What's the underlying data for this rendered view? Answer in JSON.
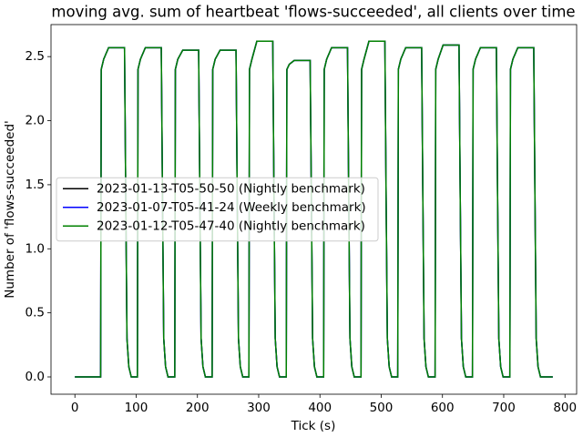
{
  "chart_data": {
    "type": "line",
    "title": "moving avg. sum of heartbeat 'flows-succeeded', all clients over time",
    "x_label": "Tick (s)",
    "y_label": "Number of 'flows-succeeded'",
    "xlim": [
      -39,
      819
    ],
    "ylim": [
      -0.135,
      2.75
    ],
    "xticks": [
      0,
      100,
      200,
      300,
      400,
      500,
      600,
      700,
      800
    ],
    "yticks": [
      {
        "value": 0,
        "label": "0.0"
      },
      0.5,
      {
        "value": 1,
        "label": "1.0"
      },
      1.5,
      {
        "value": 2,
        "label": "2.0"
      },
      2.5
    ],
    "legend": "center left",
    "grid": false,
    "x": [
      0,
      42,
      43,
      47,
      55,
      81,
      83,
      85,
      88,
      92,
      102,
      103,
      107,
      115,
      141,
      143,
      145,
      148,
      152,
      163,
      164,
      168,
      176,
      202,
      204,
      206,
      209,
      213,
      224,
      225,
      229,
      237,
      263,
      265,
      267,
      270,
      274,
      284,
      285,
      289,
      297,
      323,
      325,
      327,
      330,
      334,
      345,
      346,
      350,
      358,
      384,
      386,
      388,
      391,
      395,
      406,
      407,
      411,
      419,
      445,
      447,
      449,
      452,
      456,
      467,
      468,
      472,
      480,
      506,
      508,
      510,
      513,
      517,
      527,
      528,
      532,
      540,
      566,
      568,
      570,
      573,
      577,
      588,
      589,
      593,
      601,
      627,
      629,
      631,
      634,
      638,
      649,
      650,
      654,
      662,
      688,
      690,
      692,
      695,
      699,
      710,
      711,
      715,
      723,
      749,
      751,
      753,
      756,
      760,
      780
    ],
    "series": [
      {
        "name": "2023-01-13-T05-50-50 (Nightly benchmark)",
        "color": "#000000",
        "values": [
          0,
          0,
          2.4,
          2.48,
          2.57,
          2.57,
          1.4,
          0.3,
          0.08,
          0,
          0,
          2.4,
          2.48,
          2.57,
          2.57,
          1.4,
          0.3,
          0.08,
          0,
          0,
          2.4,
          2.48,
          2.55,
          2.55,
          1.4,
          0.3,
          0.08,
          0,
          0,
          2.4,
          2.48,
          2.55,
          2.55,
          1.4,
          0.3,
          0.08,
          0,
          0,
          2.4,
          2.48,
          2.62,
          2.62,
          1.4,
          0.3,
          0.08,
          0,
          0,
          2.4,
          2.44,
          2.47,
          2.47,
          1.4,
          0.3,
          0.08,
          0,
          0,
          2.4,
          2.48,
          2.57,
          2.57,
          1.4,
          0.3,
          0.08,
          0,
          0,
          2.4,
          2.48,
          2.62,
          2.62,
          1.4,
          0.3,
          0.08,
          0,
          0,
          2.4,
          2.48,
          2.57,
          2.57,
          1.4,
          0.3,
          0.08,
          0,
          0,
          2.4,
          2.48,
          2.59,
          2.59,
          1.4,
          0.3,
          0.08,
          0,
          0,
          2.4,
          2.48,
          2.57,
          2.57,
          1.4,
          0.3,
          0.08,
          0,
          0,
          2.4,
          2.48,
          2.57,
          2.57,
          1.4,
          0.3,
          0.08,
          0,
          0
        ]
      },
      {
        "name": "2023-01-07-T05-41-24 (Weekly benchmark)",
        "color": "#0000ff",
        "values": [
          0,
          0,
          2.4,
          2.48,
          2.57,
          2.57,
          1.4,
          0.3,
          0.08,
          0,
          0,
          2.4,
          2.48,
          2.57,
          2.57,
          1.4,
          0.3,
          0.08,
          0,
          0,
          2.4,
          2.48,
          2.55,
          2.55,
          1.4,
          0.3,
          0.08,
          0,
          0,
          2.4,
          2.48,
          2.55,
          2.55,
          1.4,
          0.3,
          0.08,
          0,
          0,
          2.4,
          2.48,
          2.62,
          2.62,
          1.4,
          0.3,
          0.08,
          0,
          0,
          2.4,
          2.44,
          2.47,
          2.47,
          1.4,
          0.3,
          0.08,
          0,
          0,
          2.4,
          2.48,
          2.57,
          2.57,
          1.4,
          0.3,
          0.08,
          0,
          0,
          2.4,
          2.48,
          2.62,
          2.62,
          1.4,
          0.3,
          0.08,
          0,
          0,
          2.4,
          2.48,
          2.57,
          2.57,
          1.4,
          0.3,
          0.08,
          0,
          0,
          2.4,
          2.48,
          2.59,
          2.59,
          1.4,
          0.3,
          0.08,
          0,
          0,
          2.4,
          2.48,
          2.57,
          2.57,
          1.4,
          0.3,
          0.08,
          0,
          0,
          2.4,
          2.48,
          2.57,
          2.57,
          1.4,
          0.3,
          0.08,
          0,
          0
        ]
      },
      {
        "name": "2023-01-12-T05-47-40 (Nightly benchmark)",
        "color": "#008000",
        "values": [
          0,
          0,
          2.4,
          2.48,
          2.57,
          2.57,
          1.4,
          0.3,
          0.08,
          0,
          0,
          2.4,
          2.48,
          2.57,
          2.57,
          1.4,
          0.3,
          0.08,
          0,
          0,
          2.4,
          2.48,
          2.55,
          2.55,
          1.4,
          0.3,
          0.08,
          0,
          0,
          2.4,
          2.48,
          2.55,
          2.55,
          1.4,
          0.3,
          0.08,
          0,
          0,
          2.4,
          2.48,
          2.62,
          2.62,
          1.4,
          0.3,
          0.08,
          0,
          0,
          2.4,
          2.44,
          2.47,
          2.47,
          1.4,
          0.3,
          0.08,
          0,
          0,
          2.4,
          2.48,
          2.57,
          2.57,
          1.4,
          0.3,
          0.08,
          0,
          0,
          2.4,
          2.48,
          2.62,
          2.62,
          1.4,
          0.3,
          0.08,
          0,
          0,
          2.4,
          2.48,
          2.57,
          2.57,
          1.4,
          0.3,
          0.08,
          0,
          0,
          2.4,
          2.48,
          2.59,
          2.59,
          1.4,
          0.3,
          0.08,
          0,
          0,
          2.4,
          2.48,
          2.57,
          2.57,
          1.4,
          0.3,
          0.08,
          0,
          0,
          2.4,
          2.48,
          2.57,
          2.57,
          1.4,
          0.3,
          0.08,
          0,
          0
        ]
      }
    ]
  }
}
